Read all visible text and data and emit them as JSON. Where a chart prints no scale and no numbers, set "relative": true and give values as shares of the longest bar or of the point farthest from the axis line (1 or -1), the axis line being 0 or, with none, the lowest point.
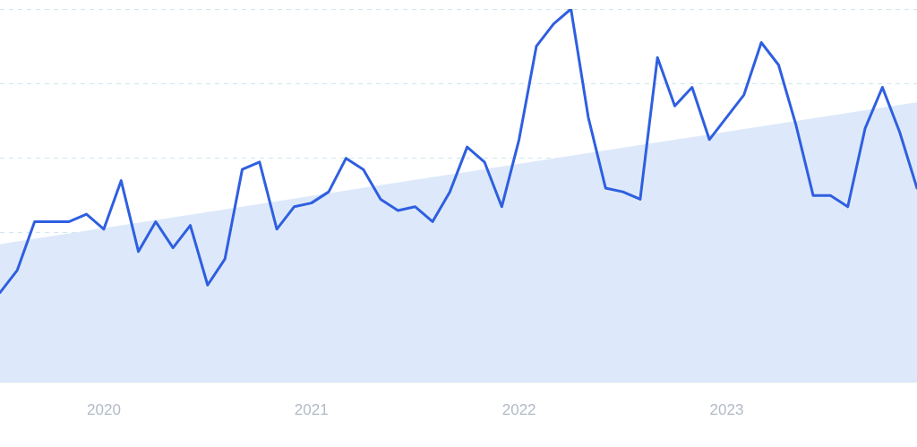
{
  "chart_data": {
    "type": "line",
    "relative": true,
    "x": [
      "2019-07",
      "2019-08",
      "2019-09",
      "2019-10",
      "2019-11",
      "2019-12",
      "2020-01",
      "2020-02",
      "2020-03",
      "2020-04",
      "2020-05",
      "2020-06",
      "2020-07",
      "2020-08",
      "2020-09",
      "2020-10",
      "2020-11",
      "2020-12",
      "2021-01",
      "2021-02",
      "2021-03",
      "2021-04",
      "2021-05",
      "2021-06",
      "2021-07",
      "2021-08",
      "2021-09",
      "2021-10",
      "2021-11",
      "2021-12",
      "2022-01",
      "2022-02",
      "2022-03",
      "2022-04",
      "2022-05",
      "2022-06",
      "2022-07",
      "2022-08",
      "2022-09",
      "2022-10",
      "2022-11",
      "2022-12",
      "2023-01",
      "2023-02",
      "2023-03",
      "2023-04",
      "2023-05",
      "2023-06",
      "2023-07",
      "2023-08",
      "2023-09",
      "2023-10",
      "2023-11",
      "2023-12"
    ],
    "series": [
      {
        "color": "#2f5fe0",
        "values": [
          0.24,
          0.3,
          0.43,
          0.43,
          0.43,
          0.45,
          0.41,
          0.54,
          0.35,
          0.43,
          0.36,
          0.42,
          0.26,
          0.33,
          0.57,
          0.59,
          0.41,
          0.47,
          0.48,
          0.51,
          0.6,
          0.57,
          0.49,
          0.46,
          0.47,
          0.43,
          0.51,
          0.63,
          0.59,
          0.47,
          0.65,
          0.9,
          0.96,
          1,
          0.71,
          0.52,
          0.51,
          0.49,
          0.87,
          0.74,
          0.79,
          0.65,
          0.71,
          0.77,
          0.91,
          0.85,
          0.69,
          0.5,
          0.5,
          0.47,
          0.68,
          0.79,
          0.67,
          0.52
        ]
      },
      {
        "type": "area",
        "color": "#dde9fa",
        "x": [
          "2019-07",
          "2023-12"
        ],
        "values": [
          0.37,
          0.75
        ]
      }
    ],
    "xlim": [
      "2019-07",
      "2023-12"
    ],
    "xticks": [
      "2020",
      "2021",
      "2022",
      "2023"
    ],
    "grid": "y",
    "legend": false,
    "line_style": "solid",
    "marker": "none"
  }
}
